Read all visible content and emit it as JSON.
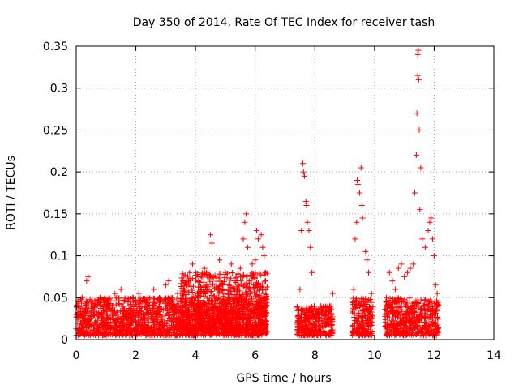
{
  "chart_data": {
    "type": "scatter",
    "title": "Day 350 of 2014, Rate Of TEC Index for receiver tash",
    "xlabel": "GPS time / hours",
    "ylabel": "ROTI / TECUs",
    "xlim": [
      0,
      14
    ],
    "ylim": [
      0,
      0.35
    ],
    "x_ticks": [
      0,
      2,
      4,
      6,
      8,
      10,
      12,
      14
    ],
    "x_tick_labels": [
      "0",
      "2",
      "4",
      "6",
      "8",
      "10",
      "12",
      "14"
    ],
    "y_ticks": [
      0,
      0.05,
      0.1,
      0.15,
      0.2,
      0.25,
      0.3,
      0.35
    ],
    "y_tick_labels": [
      "0",
      "0.05",
      "0.1",
      "0.15",
      "0.2",
      "0.25",
      "0.3",
      "0.35"
    ],
    "grid": true,
    "marker": "+",
    "marker_color": "#ff0000",
    "series": [
      {
        "name": "ROTI",
        "points": [
          [
            0.05,
            0.03
          ],
          [
            0.1,
            0.045
          ],
          [
            0.15,
            0.02
          ],
          [
            0.2,
            0.05
          ],
          [
            0.3,
            0.035
          ],
          [
            0.35,
            0.07
          ],
          [
            0.4,
            0.075
          ],
          [
            0.5,
            0.025
          ],
          [
            0.6,
            0.04
          ],
          [
            0.7,
            0.015
          ],
          [
            0.8,
            0.05
          ],
          [
            0.9,
            0.03
          ],
          [
            1.0,
            0.045
          ],
          [
            1.1,
            0.02
          ],
          [
            1.2,
            0.04
          ],
          [
            1.3,
            0.055
          ],
          [
            1.4,
            0.03
          ],
          [
            1.5,
            0.06
          ],
          [
            1.6,
            0.025
          ],
          [
            1.7,
            0.045
          ],
          [
            1.8,
            0.035
          ],
          [
            1.9,
            0.05
          ],
          [
            2.0,
            0.02
          ],
          [
            2.1,
            0.055
          ],
          [
            2.2,
            0.04
          ],
          [
            2.3,
            0.03
          ],
          [
            2.4,
            0.05
          ],
          [
            2.5,
            0.025
          ],
          [
            2.6,
            0.06
          ],
          [
            2.7,
            0.035
          ],
          [
            2.8,
            0.045
          ],
          [
            2.9,
            0.02
          ],
          [
            3.0,
            0.065
          ],
          [
            3.1,
            0.07
          ],
          [
            3.2,
            0.04
          ],
          [
            3.3,
            0.03
          ],
          [
            3.4,
            0.055
          ],
          [
            3.5,
            0.045
          ],
          [
            3.6,
            0.06
          ],
          [
            3.7,
            0.035
          ],
          [
            3.8,
            0.08
          ],
          [
            3.9,
            0.09
          ],
          [
            4.0,
            0.05
          ],
          [
            4.1,
            0.07
          ],
          [
            4.2,
            0.04
          ],
          [
            4.3,
            0.085
          ],
          [
            4.4,
            0.06
          ],
          [
            4.5,
            0.125
          ],
          [
            4.55,
            0.115
          ],
          [
            4.6,
            0.075
          ],
          [
            4.7,
            0.05
          ],
          [
            4.8,
            0.095
          ],
          [
            4.9,
            0.065
          ],
          [
            5.0,
            0.08
          ],
          [
            5.1,
            0.055
          ],
          [
            5.2,
            0.09
          ],
          [
            5.3,
            0.07
          ],
          [
            5.4,
            0.06
          ],
          [
            5.5,
            0.085
          ],
          [
            5.6,
            0.12
          ],
          [
            5.65,
            0.14
          ],
          [
            5.7,
            0.15
          ],
          [
            5.75,
            0.11
          ],
          [
            5.8,
            0.07
          ],
          [
            5.9,
            0.09
          ],
          [
            6.0,
            0.095
          ],
          [
            6.05,
            0.13
          ],
          [
            6.1,
            0.12
          ],
          [
            6.2,
            0.125
          ],
          [
            6.25,
            0.11
          ],
          [
            6.3,
            0.1
          ],
          [
            6.35,
            0.08
          ],
          [
            7.5,
            0.06
          ],
          [
            7.55,
            0.13
          ],
          [
            7.6,
            0.21
          ],
          [
            7.62,
            0.2
          ],
          [
            7.65,
            0.195
          ],
          [
            7.7,
            0.165
          ],
          [
            7.72,
            0.16
          ],
          [
            7.75,
            0.14
          ],
          [
            7.8,
            0.13
          ],
          [
            7.85,
            0.11
          ],
          [
            7.9,
            0.08
          ],
          [
            8.0,
            0.035
          ],
          [
            8.1,
            0.03
          ],
          [
            8.2,
            0.04
          ],
          [
            8.3,
            0.035
          ],
          [
            8.4,
            0.03
          ],
          [
            8.5,
            0.04
          ],
          [
            8.6,
            0.055
          ],
          [
            9.3,
            0.06
          ],
          [
            9.35,
            0.12
          ],
          [
            9.4,
            0.14
          ],
          [
            9.42,
            0.19
          ],
          [
            9.45,
            0.185
          ],
          [
            9.5,
            0.175
          ],
          [
            9.55,
            0.205
          ],
          [
            9.58,
            0.16
          ],
          [
            9.6,
            0.145
          ],
          [
            9.7,
            0.105
          ],
          [
            9.75,
            0.095
          ],
          [
            9.8,
            0.08
          ],
          [
            9.9,
            0.055
          ],
          [
            10.4,
            0.05
          ],
          [
            10.5,
            0.08
          ],
          [
            10.6,
            0.07
          ],
          [
            10.7,
            0.06
          ],
          [
            10.8,
            0.085
          ],
          [
            10.9,
            0.09
          ],
          [
            11.0,
            0.075
          ],
          [
            11.1,
            0.08
          ],
          [
            11.2,
            0.085
          ],
          [
            11.3,
            0.09
          ],
          [
            11.35,
            0.175
          ],
          [
            11.4,
            0.22
          ],
          [
            11.42,
            0.27
          ],
          [
            11.45,
            0.315
          ],
          [
            11.48,
            0.31
          ],
          [
            11.45,
            0.34
          ],
          [
            11.47,
            0.345
          ],
          [
            11.5,
            0.25
          ],
          [
            11.55,
            0.205
          ],
          [
            11.52,
            0.155
          ],
          [
            11.6,
            0.12
          ],
          [
            11.7,
            0.11
          ],
          [
            11.8,
            0.13
          ],
          [
            11.85,
            0.14
          ],
          [
            11.9,
            0.145
          ],
          [
            11.95,
            0.12
          ],
          [
            12.0,
            0.1
          ],
          [
            12.05,
            0.065
          ],
          [
            12.1,
            0.055
          ]
        ]
      }
    ],
    "dense_clusters": [
      {
        "x_range": [
          0.0,
          6.4
        ],
        "y_min": 0.005,
        "y_max": 0.05
      },
      {
        "x_range": [
          3.5,
          6.4
        ],
        "y_min": 0.01,
        "y_max": 0.08
      },
      {
        "x_range": [
          7.4,
          8.6
        ],
        "y_min": 0.005,
        "y_max": 0.04
      },
      {
        "x_range": [
          9.25,
          9.95
        ],
        "y_min": 0.005,
        "y_max": 0.05
      },
      {
        "x_range": [
          10.35,
          12.15
        ],
        "y_min": 0.005,
        "y_max": 0.05
      }
    ]
  }
}
